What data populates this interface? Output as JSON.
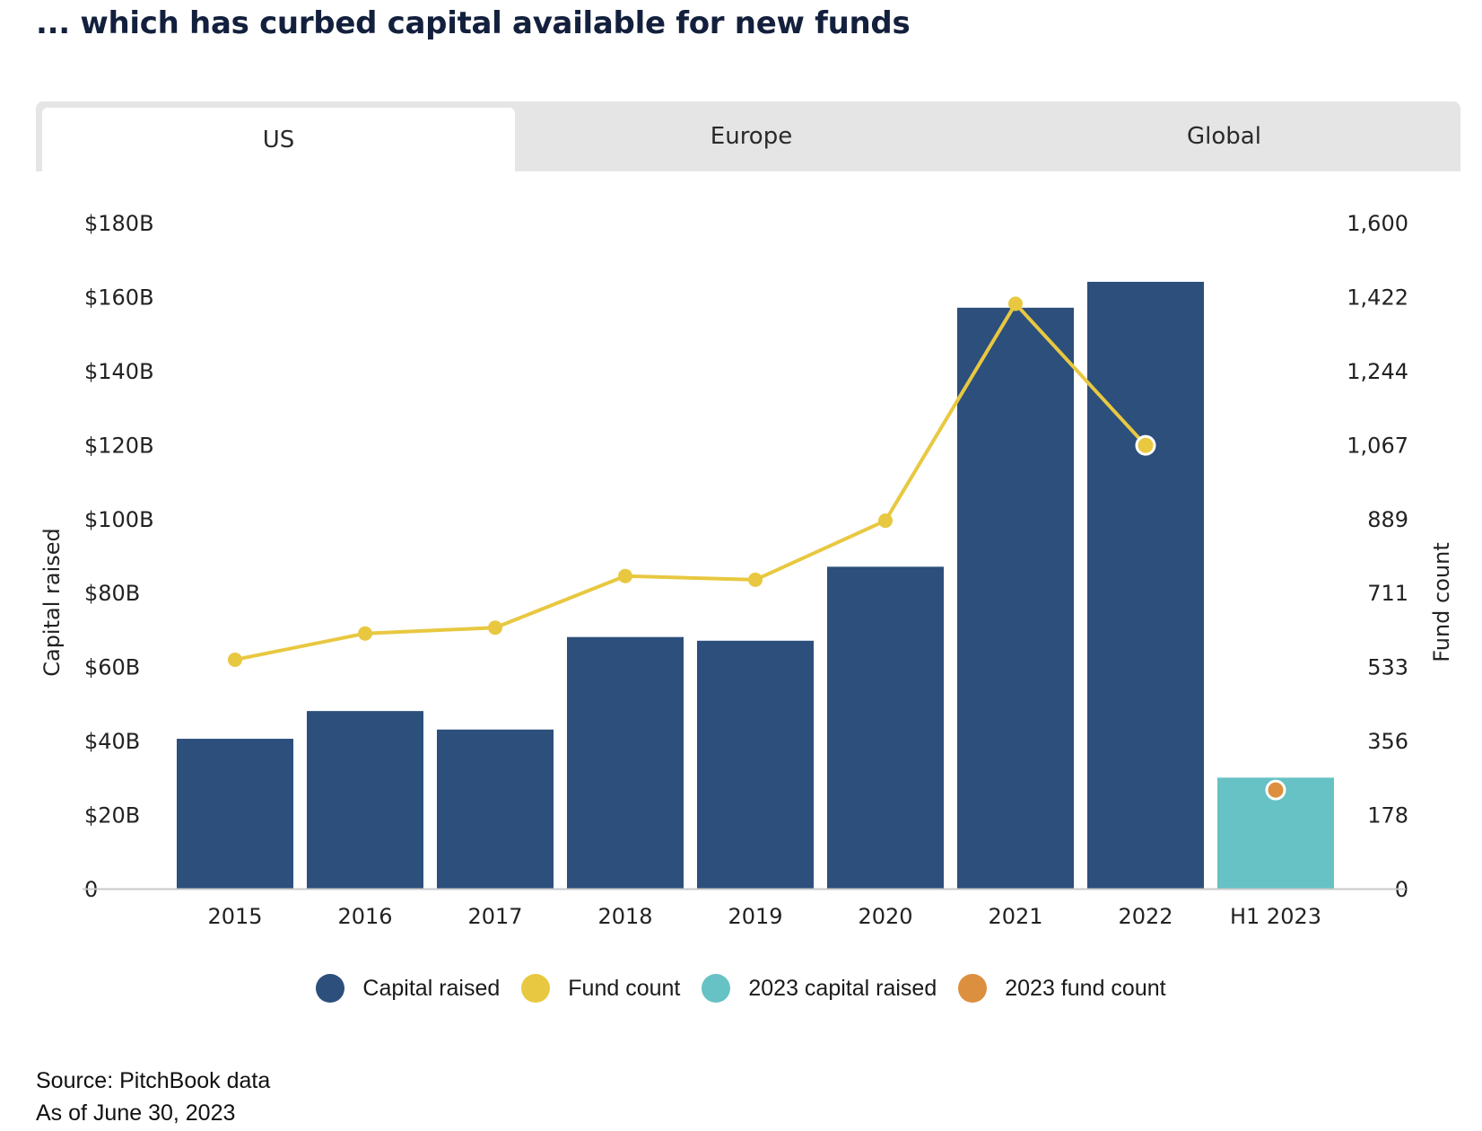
{
  "header": {
    "title": "... which has curbed capital available for new funds"
  },
  "tabs": [
    {
      "label": "US",
      "active": true
    },
    {
      "label": "Europe",
      "active": false
    },
    {
      "label": "Global",
      "active": false
    }
  ],
  "chart_data": {
    "type": "bar",
    "categories": [
      "2015",
      "2016",
      "2017",
      "2018",
      "2019",
      "2020",
      "2021",
      "2022",
      "H1 2023"
    ],
    "series": [
      {
        "name": "Capital raised",
        "type": "bar",
        "axis": "left",
        "values": [
          40.5,
          48,
          43,
          68,
          67,
          87,
          157,
          164,
          null
        ]
      },
      {
        "name": "2023 capital raised",
        "type": "bar",
        "axis": "left",
        "values": [
          null,
          null,
          null,
          null,
          null,
          null,
          null,
          null,
          30
        ]
      },
      {
        "name": "Fund count",
        "type": "line",
        "axis": "right",
        "values": [
          550,
          613,
          627,
          751,
          742,
          884,
          1405,
          1065,
          null
        ]
      },
      {
        "name": "2023 fund count",
        "type": "point",
        "axis": "right",
        "values": [
          null,
          null,
          null,
          null,
          null,
          null,
          null,
          null,
          237
        ]
      }
    ],
    "ylabel": "Capital raised",
    "y2label": "Fund count",
    "ylim": [
      0,
      180
    ],
    "y2lim": [
      0,
      1600
    ],
    "yticks": [
      "0",
      "$20B",
      "$40B",
      "$60B",
      "$80B",
      "$100B",
      "$120B",
      "$140B",
      "$160B",
      "$180B"
    ],
    "y2ticks": [
      "0",
      "178",
      "356",
      "533",
      "711",
      "889",
      "1,067",
      "1,244",
      "1,422",
      "1,600"
    ],
    "colors": {
      "capital_raised": "#2c4f7c",
      "fund_count": "#e8c840",
      "capital_2023": "#66c2c4",
      "fund_count_2023": "#dc8f3e"
    },
    "legend_position": "bottom-center",
    "grid": false
  },
  "legend": [
    {
      "label": "Capital raised",
      "color": "#2c4f7c"
    },
    {
      "label": "Fund count",
      "color": "#e8c840"
    },
    {
      "label": "2023 capital raised",
      "color": "#66c2c4"
    },
    {
      "label": "2023 fund count",
      "color": "#dc8f3e"
    }
  ],
  "footer": {
    "source": "Source: PitchBook data",
    "date": "As of June 30, 2023"
  }
}
